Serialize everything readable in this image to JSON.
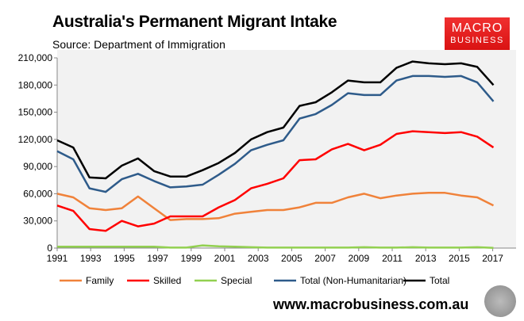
{
  "chart_data": {
    "type": "line",
    "title": "Australia's Permanent Migrant Intake",
    "subtitle": "Source: Department of Immigration",
    "x": [
      1991,
      1992,
      1993,
      1994,
      1995,
      1996,
      1997,
      1998,
      1999,
      2000,
      2001,
      2002,
      2003,
      2004,
      2005,
      2006,
      2007,
      2008,
      2009,
      2010,
      2011,
      2012,
      2013,
      2014,
      2015,
      2016,
      2017,
      2018
    ],
    "xticks": [
      "1991",
      "1993",
      "1995",
      "1997",
      "1999",
      "2001",
      "2003",
      "2005",
      "2007",
      "2009",
      "2011",
      "2013",
      "2015",
      "2017"
    ],
    "yticks": [
      "0",
      "30,000",
      "60,000",
      "90,000",
      "120,000",
      "150,000",
      "180,000",
      "210,000"
    ],
    "ylim": [
      0,
      210000
    ],
    "grid": false,
    "legend": "bottom",
    "series": [
      {
        "name": "Family",
        "color": "#f0823a",
        "values": [
          60000,
          56000,
          44000,
          42000,
          44000,
          57000,
          44000,
          31000,
          32000,
          32000,
          33000,
          38000,
          40000,
          42000,
          42000,
          45000,
          50000,
          50000,
          56000,
          60000,
          55000,
          58000,
          60000,
          61000,
          61000,
          58000,
          56000,
          47000
        ]
      },
      {
        "name": "Skilled",
        "color": "#ff0000",
        "values": [
          47000,
          41000,
          21000,
          19000,
          30000,
          24000,
          27000,
          35000,
          35000,
          35000,
          45000,
          53000,
          66000,
          71000,
          77000,
          97000,
          98000,
          109000,
          115000,
          108000,
          114000,
          126000,
          129000,
          128000,
          127000,
          128000,
          123000,
          111000
        ]
      },
      {
        "name": "Special",
        "color": "#92d050",
        "values": [
          1500,
          1500,
          1500,
          1500,
          1500,
          1500,
          1500,
          500,
          500,
          3000,
          2000,
          1500,
          1000,
          500,
          500,
          500,
          500,
          500,
          500,
          1000,
          500,
          500,
          1000,
          500,
          500,
          500,
          1000,
          300
        ]
      },
      {
        "name": "Total (Non-Humanitarian)",
        "color": "#2e5b8a",
        "values": [
          107000,
          98000,
          66000,
          62000,
          76000,
          82000,
          74000,
          67000,
          68000,
          70000,
          81000,
          93000,
          108000,
          114000,
          119000,
          143000,
          148000,
          158000,
          171000,
          169000,
          169000,
          185000,
          190000,
          190000,
          189000,
          190000,
          183000,
          162000
        ]
      },
      {
        "name": "Total",
        "color": "#000000",
        "values": [
          119000,
          111000,
          78000,
          77000,
          91000,
          99000,
          85000,
          79000,
          79000,
          86000,
          94000,
          105000,
          120000,
          128000,
          133000,
          157000,
          161000,
          172000,
          185000,
          183000,
          183000,
          199000,
          206000,
          204000,
          203000,
          204000,
          200000,
          180000
        ]
      }
    ]
  },
  "logo": {
    "line1": "MACRO",
    "line2": "BUSINESS"
  },
  "footer": {
    "url": "www.macrobusiness.com.au"
  }
}
